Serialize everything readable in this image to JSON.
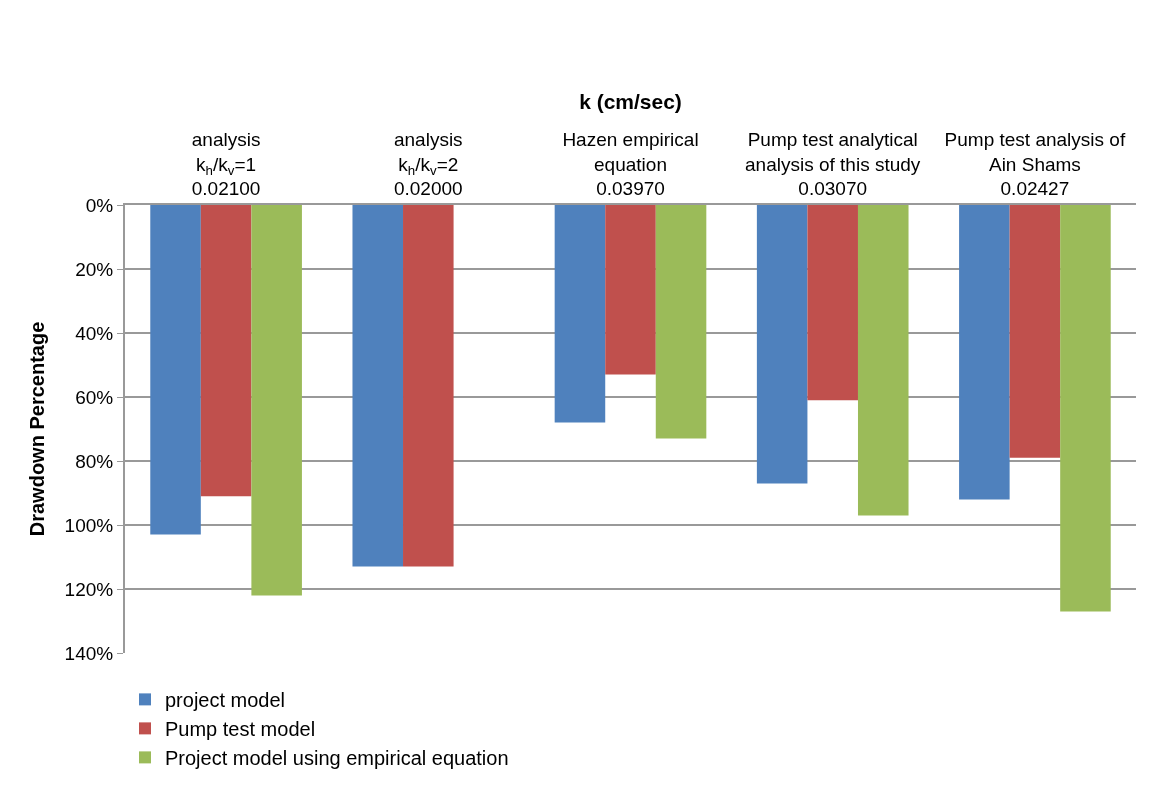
{
  "chart_data": {
    "type": "bar",
    "xlabel": "k (cm/sec)",
    "ylabel": "Drawdown Percentage",
    "categories": [
      "analysis\nk$_{h}$/k$_{v}$=1\n0.02100",
      "analysis\nk$_{h}$/k$_{v}$=2\n0.02000",
      "Hazen empirical\nequation\n0.03970",
      "Pump test analytical\nanalysis of this study\n0.03070",
      "Pump test analysis of\nAin Shams\n0.02427"
    ],
    "series": [
      {
        "name": "project model",
        "color": "#4f81bd",
        "values": [
          103,
          113,
          68,
          87,
          92
        ]
      },
      {
        "name": "Pump test model",
        "color": "#c0504d",
        "values": [
          91,
          113,
          53,
          61,
          79
        ]
      },
      {
        "name": "Project model using empirical equation",
        "color": "#9bbb59",
        "values": [
          122,
          null,
          73,
          97,
          127
        ]
      }
    ],
    "ylim": [
      140,
      0
    ],
    "yticks": [
      {
        "value": 0,
        "label": "0%"
      },
      {
        "value": 20,
        "label": "20%"
      },
      {
        "value": 40,
        "label": "40%"
      },
      {
        "value": 60,
        "label": "60%"
      },
      {
        "value": 80,
        "label": "80%"
      },
      {
        "value": 100,
        "label": "100%"
      },
      {
        "value": 120,
        "label": "120%"
      },
      {
        "value": 140,
        "label": "140%"
      }
    ],
    "grid": "y",
    "legend": "bottom"
  }
}
